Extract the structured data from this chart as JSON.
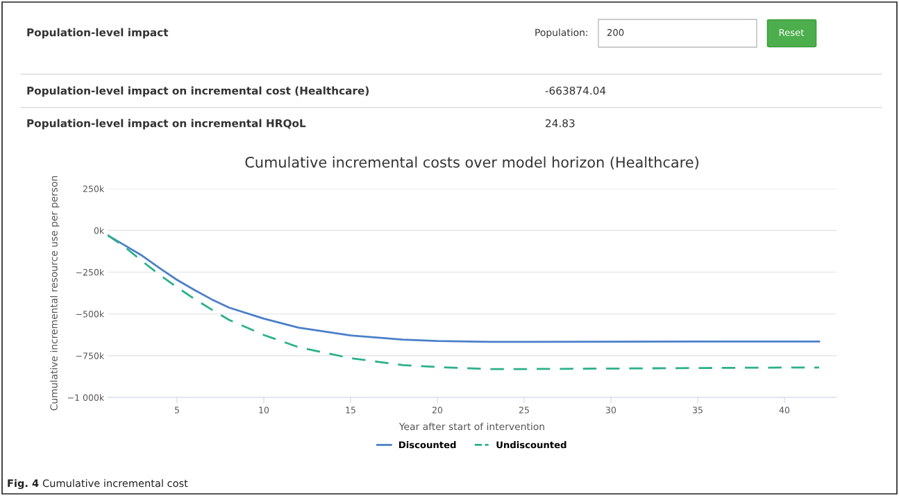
{
  "chart_data": {
    "type": "line",
    "title": "Cumulative incremental costs over model horizon (Healthcare)",
    "xlabel": "Year after start of intervention",
    "ylabel": "Cumulative incremental resource use per person",
    "xlim": [
      1,
      43
    ],
    "xticks": [
      5,
      10,
      15,
      20,
      25,
      30,
      35,
      40
    ],
    "ylim": [
      -1000000,
      250000
    ],
    "yticks": [
      {
        "value": -1000000,
        "label": "−1 000k"
      },
      {
        "value": -750000,
        "label": "−750k"
      },
      {
        "value": -500000,
        "label": "−500k"
      },
      {
        "value": -250000,
        "label": "−250k"
      },
      {
        "value": 0,
        "label": "0k"
      },
      {
        "value": 250000,
        "label": "250k"
      }
    ],
    "grid": "y",
    "legend": "bottom",
    "x": [
      1,
      2,
      3,
      4,
      5,
      6,
      7,
      8,
      10,
      12,
      15,
      18,
      20,
      23,
      25,
      30,
      35,
      40,
      42
    ],
    "series": [
      {
        "name": "Discounted",
        "color": "#4a7fc9",
        "line_style": "solid",
        "values": [
          -29000,
          -90000,
          -152000,
          -226000,
          -296000,
          -356000,
          -413000,
          -462000,
          -528000,
          -582000,
          -629000,
          -654000,
          -662000,
          -667000,
          -667000,
          -666000,
          -665000,
          -665000,
          -665000
        ]
      },
      {
        "name": "Undiscounted",
        "color": "#2bb08a",
        "line_style": "dashed",
        "values": [
          -29000,
          -100000,
          -185000,
          -266000,
          -340000,
          -410000,
          -474000,
          -536000,
          -626000,
          -699000,
          -765000,
          -806000,
          -818000,
          -830000,
          -830000,
          -827000,
          -824000,
          -821000,
          -821000
        ]
      }
    ],
    "annotations": [
      "Population-level impact",
      "Population:",
      "200",
      "Reset",
      "Population-level impact on incremental cost (Healthcare)",
      "-663874.04",
      "Population-level impact on incremental HRQoL",
      "24.83",
      "Fig. 4 Cumulative incremental cost"
    ]
  }
}
